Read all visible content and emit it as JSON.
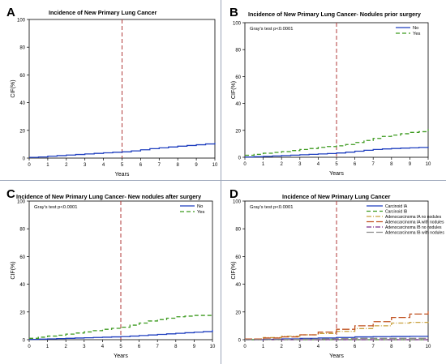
{
  "chart_data": [
    {
      "type": "line",
      "panel_label": "A",
      "title": "Incidence of New Primary Lung Cancer",
      "xlabel": "Years",
      "ylabel": "CIF(%)",
      "xlim": [
        0,
        10
      ],
      "ylim": [
        0,
        100
      ],
      "xticks": [
        0,
        1,
        2,
        3,
        4,
        5,
        6,
        7,
        8,
        9,
        10
      ],
      "yticks": [
        0,
        20,
        40,
        60,
        80,
        100
      ],
      "reference_line_x": 5,
      "legend": "none",
      "series": [
        {
          "color": "#1f3fbf",
          "dash": "solid",
          "x": [
            0,
            0.5,
            1,
            1.5,
            2,
            2.5,
            3,
            3.5,
            4,
            4.5,
            5,
            5.5,
            6,
            6.5,
            7,
            7.5,
            8,
            8.5,
            9,
            9.5,
            10
          ],
          "y": [
            0.5,
            0.8,
            1.4,
            1.8,
            2.2,
            2.6,
            3.0,
            3.4,
            3.8,
            4.2,
            4.5,
            5.2,
            6.0,
            6.8,
            7.4,
            8.0,
            8.6,
            9.1,
            9.6,
            10.2,
            11.0
          ]
        }
      ]
    },
    {
      "type": "line",
      "panel_label": "B",
      "title": "Incidence of New Primary Lung Cancer- Nodules prior surgery",
      "annotation": "Gray's test p<0.0001",
      "xlabel": "Years",
      "ylabel": "CIF(%)",
      "xlim": [
        0,
        10
      ],
      "ylim": [
        0,
        100
      ],
      "xticks": [
        0,
        1,
        2,
        3,
        4,
        5,
        6,
        7,
        8,
        9,
        10
      ],
      "yticks": [
        0,
        20,
        40,
        60,
        80,
        100
      ],
      "reference_line_x": 5,
      "legend": "top-right",
      "series": [
        {
          "name": "No",
          "color": "#1f3fbf",
          "dash": "solid",
          "x": [
            0,
            0.5,
            1,
            1.5,
            2,
            2.5,
            3,
            3.5,
            4,
            4.5,
            5,
            5.5,
            6,
            6.5,
            7,
            7.5,
            8,
            8.5,
            9,
            9.5,
            10
          ],
          "y": [
            0.2,
            0.4,
            0.7,
            1.0,
            1.3,
            1.6,
            1.9,
            2.2,
            2.5,
            2.8,
            3.2,
            3.8,
            4.5,
            5.2,
            5.8,
            6.2,
            6.5,
            6.8,
            7.0,
            7.3,
            7.8
          ]
        },
        {
          "name": "Yes",
          "color": "#3c9a1f",
          "dash": "dashed",
          "x": [
            0,
            0.5,
            1,
            1.5,
            2,
            2.5,
            3,
            3.5,
            4,
            4.5,
            5,
            5.5,
            6,
            6.5,
            7,
            7.5,
            8,
            8.5,
            9,
            9.5,
            10
          ],
          "y": [
            1.5,
            2.2,
            3.0,
            3.6,
            4.2,
            5.0,
            5.8,
            6.5,
            7.4,
            8.0,
            8.5,
            9.5,
            11.0,
            12.5,
            14.0,
            15.5,
            16.5,
            17.5,
            18.5,
            19.0,
            21.0
          ]
        }
      ]
    },
    {
      "type": "line",
      "panel_label": "C",
      "title": "Incidence of New Primary Lung Cancer- New nodules after surgery",
      "annotation": "Gray's test p<0.0001",
      "xlabel": "Years",
      "ylabel": "CIF(%)",
      "xlim": [
        0,
        10
      ],
      "ylim": [
        0,
        100
      ],
      "xticks": [
        0,
        1,
        2,
        3,
        4,
        5,
        6,
        7,
        8,
        9,
        10
      ],
      "yticks": [
        0,
        20,
        40,
        60,
        80,
        100
      ],
      "reference_line_x": 5,
      "legend": "top-right",
      "series": [
        {
          "name": "No",
          "color": "#1f3fbf",
          "dash": "solid",
          "x": [
            0,
            0.5,
            1,
            1.5,
            2,
            2.5,
            3,
            3.5,
            4,
            4.5,
            5,
            5.5,
            6,
            6.5,
            7,
            7.5,
            8,
            8.5,
            9,
            9.5,
            10
          ],
          "y": [
            0.2,
            0.4,
            0.6,
            0.8,
            1.0,
            1.2,
            1.4,
            1.6,
            1.8,
            2.0,
            2.2,
            2.6,
            3.0,
            3.4,
            3.8,
            4.2,
            4.6,
            5.0,
            5.4,
            5.8,
            7.0
          ]
        },
        {
          "name": "Yes",
          "color": "#3c9a1f",
          "dash": "dashed",
          "x": [
            0,
            0.5,
            1,
            1.5,
            2,
            2.5,
            3,
            3.5,
            4,
            4.5,
            5,
            5.5,
            6,
            6.5,
            7,
            7.5,
            8,
            8.5,
            9,
            9.5,
            10
          ],
          "y": [
            1.0,
            1.8,
            2.6,
            3.2,
            4.0,
            4.8,
            5.6,
            6.5,
            7.5,
            8.2,
            9.0,
            10.5,
            12.0,
            13.5,
            14.5,
            15.5,
            16.5,
            17.0,
            17.5,
            17.5,
            17.5
          ]
        }
      ]
    },
    {
      "type": "line",
      "panel_label": "D",
      "title": "Incidence of New Primary Lung Cancer",
      "annotation": "Gray's test p<0.0001",
      "xlabel": "Years",
      "ylabel": "CIF(%)",
      "xlim": [
        0,
        10
      ],
      "ylim": [
        0,
        100
      ],
      "xticks": [
        0,
        1,
        2,
        3,
        4,
        5,
        6,
        7,
        8,
        9,
        10
      ],
      "yticks": [
        0,
        20,
        40,
        60,
        80,
        100
      ],
      "reference_line_x": 5,
      "legend": "top-right",
      "series": [
        {
          "name": "Carcinoid IA",
          "color": "#1f3fbf",
          "dash": "solid",
          "x": [
            0,
            1,
            2,
            3,
            4,
            5,
            6,
            7,
            8,
            9,
            10
          ],
          "y": [
            0,
            0.3,
            0.6,
            0.9,
            1.2,
            1.6,
            2.0,
            2.2,
            2.3,
            2.4,
            2.5
          ]
        },
        {
          "name": "Carcinoid IB",
          "color": "#3c9a1f",
          "dash": "dashed",
          "x": [
            0,
            1,
            2,
            3,
            4,
            5,
            6,
            7,
            8,
            9,
            10
          ],
          "y": [
            0,
            0,
            0,
            0,
            0,
            0,
            0,
            0,
            0,
            0,
            0
          ]
        },
        {
          "name": "Adenocarcinoma IA no nodules",
          "color": "#c8a03c",
          "dash": "dashdot",
          "x": [
            0,
            1,
            2,
            3,
            4,
            5,
            6,
            7,
            8,
            9,
            10
          ],
          "y": [
            0.5,
            1.5,
            2.5,
            3.5,
            4.5,
            6.0,
            8.0,
            10.0,
            12.0,
            12.5,
            13.0
          ]
        },
        {
          "name": "Adenocarcinoma IA with nodules",
          "color": "#c0501f",
          "dash": "longdash",
          "x": [
            0,
            1,
            2,
            3,
            4,
            5,
            6,
            7,
            8,
            9,
            10
          ],
          "y": [
            0.5,
            1.2,
            2.0,
            3.5,
            5.5,
            7.5,
            10.0,
            13.0,
            16.0,
            18.5,
            20.5
          ]
        },
        {
          "name": "Adenocarcinoma IB no nodules",
          "color": "#7a2c8c",
          "dash": "dashdot",
          "x": [
            0,
            1,
            2,
            3,
            4,
            5,
            6,
            7,
            8,
            9,
            10
          ],
          "y": [
            0,
            0,
            0,
            0,
            0,
            0,
            0,
            0,
            0,
            0,
            0
          ]
        },
        {
          "name": "Adenocarcinoma IB with nodules",
          "color": "#8a8a8a",
          "dash": "longdash",
          "x": [
            0,
            1,
            2,
            3,
            4,
            5,
            6,
            7,
            8,
            9,
            10
          ],
          "y": [
            0,
            0,
            0.2,
            0.4,
            0.6,
            0.8,
            1.0,
            1.0,
            1.0,
            1.0,
            1.0
          ]
        }
      ]
    }
  ]
}
